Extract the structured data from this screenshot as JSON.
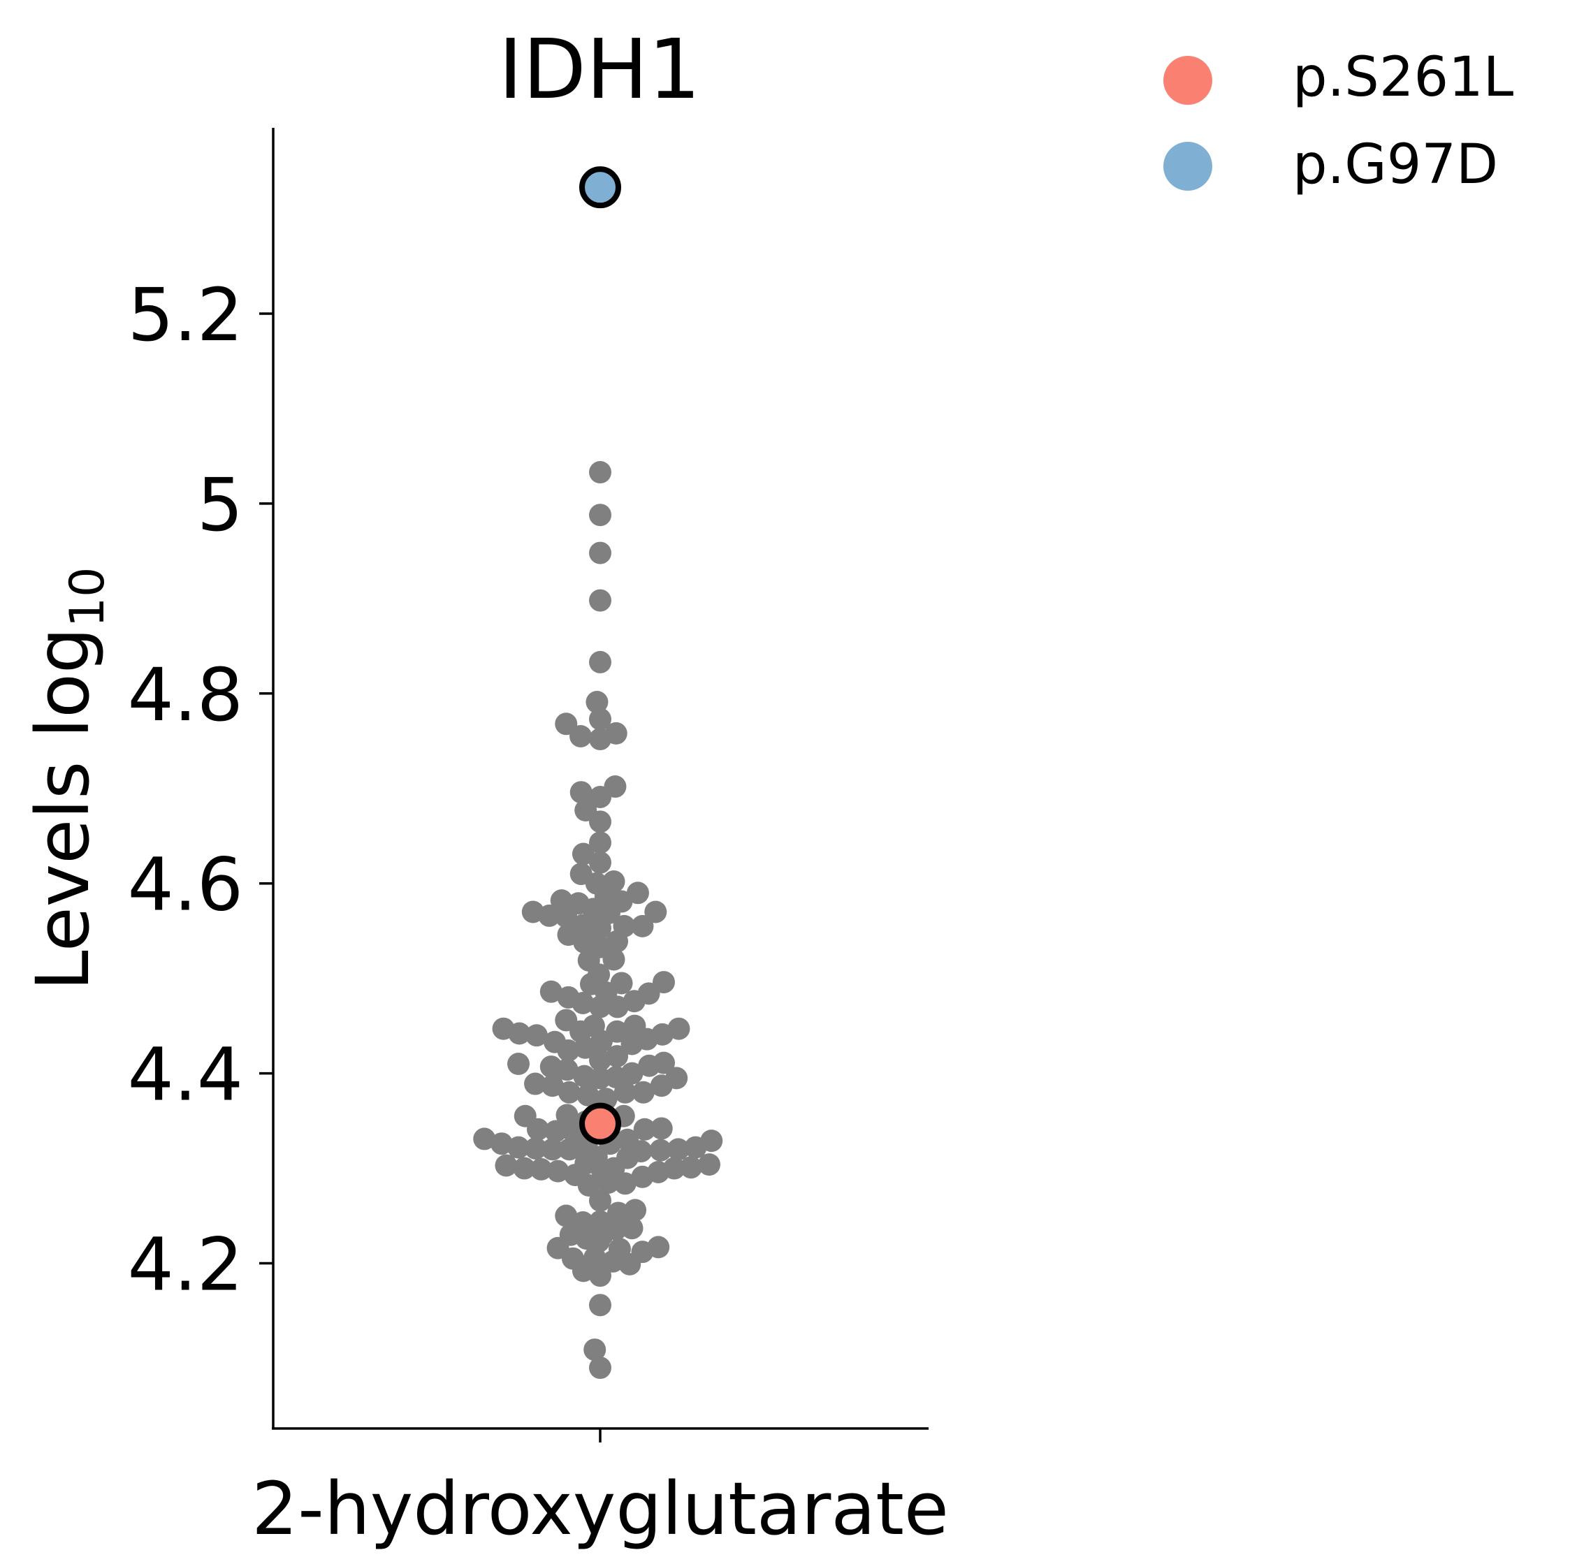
{
  "chart_data": {
    "type": "scatter",
    "title": "IDH1",
    "ylabel": "Levels log",
    "ylabel_sub": "10",
    "categories": [
      "2-hydroxyglutarate"
    ],
    "yticks": [
      4.2,
      4.4,
      4.6,
      4.8,
      5.0,
      5.2
    ],
    "ytick_labels": [
      "4.2",
      "4.4",
      "4.6",
      "4.8",
      "5",
      "5.2"
    ],
    "ylim": [
      4.03,
      5.4
    ],
    "grid": false,
    "legend": {
      "placement": "top-right",
      "entries": [
        {
          "label": "p.S261L",
          "color": "#fa8072"
        },
        {
          "label": "p.G97D",
          "color": "#7fb0d3"
        }
      ]
    },
    "background_color": "#808080",
    "background_points": [
      {
        "x": 0.0,
        "y": 5.033
      },
      {
        "x": 0.0,
        "y": 4.988
      },
      {
        "x": 0.0,
        "y": 4.948
      },
      {
        "x": 0.0,
        "y": 4.898
      },
      {
        "x": 0.0,
        "y": 4.833
      },
      {
        "x": -0.007,
        "y": 4.791
      },
      {
        "x": 0.0,
        "y": 4.773
      },
      {
        "x": -0.075,
        "y": 4.768
      },
      {
        "x": -0.043,
        "y": 4.755
      },
      {
        "x": 0.0,
        "y": 4.752
      },
      {
        "x": 0.035,
        "y": 4.758
      },
      {
        "x": -0.042,
        "y": 4.696
      },
      {
        "x": 0.0,
        "y": 4.691
      },
      {
        "x": 0.033,
        "y": 4.702
      },
      {
        "x": -0.032,
        "y": 4.677
      },
      {
        "x": 0.0,
        "y": 4.665
      },
      {
        "x": 0.0,
        "y": 4.643
      },
      {
        "x": -0.037,
        "y": 4.631
      },
      {
        "x": 0.0,
        "y": 4.622
      },
      {
        "x": -0.042,
        "y": 4.61
      },
      {
        "x": -0.008,
        "y": 4.6
      },
      {
        "x": 0.03,
        "y": 4.602
      },
      {
        "x": 0.012,
        "y": 4.586
      },
      {
        "x": -0.085,
        "y": 4.582
      },
      {
        "x": -0.048,
        "y": 4.579
      },
      {
        "x": 0.047,
        "y": 4.581
      },
      {
        "x": 0.083,
        "y": 4.59
      },
      {
        "x": -0.148,
        "y": 4.57
      },
      {
        "x": -0.112,
        "y": 4.566
      },
      {
        "x": -0.075,
        "y": 4.565
      },
      {
        "x": -0.015,
        "y": 4.573
      },
      {
        "x": 0.02,
        "y": 4.569
      },
      {
        "x": 0.122,
        "y": 4.57
      },
      {
        "x": -0.038,
        "y": 4.556
      },
      {
        "x": 0.0,
        "y": 4.553
      },
      {
        "x": 0.053,
        "y": 4.555
      },
      {
        "x": 0.093,
        "y": 4.555
      },
      {
        "x": -0.07,
        "y": 4.546
      },
      {
        "x": -0.035,
        "y": 4.538
      },
      {
        "x": 0.037,
        "y": 4.539
      },
      {
        "x": 0.0,
        "y": 4.533
      },
      {
        "x": -0.025,
        "y": 4.519
      },
      {
        "x": 0.03,
        "y": 4.52
      },
      {
        "x": -0.003,
        "y": 4.504
      },
      {
        "x": -0.02,
        "y": 4.494
      },
      {
        "x": 0.047,
        "y": 4.495
      },
      {
        "x": 0.14,
        "y": 4.496
      },
      {
        "x": -0.108,
        "y": 4.486
      },
      {
        "x": -0.07,
        "y": 4.48
      },
      {
        "x": 0.013,
        "y": 4.485
      },
      {
        "x": 0.107,
        "y": 4.484
      },
      {
        "x": -0.038,
        "y": 4.474
      },
      {
        "x": 0.0,
        "y": 4.47
      },
      {
        "x": 0.038,
        "y": 4.47
      },
      {
        "x": 0.075,
        "y": 4.476
      },
      {
        "x": -0.075,
        "y": 4.456
      },
      {
        "x": -0.014,
        "y": 4.45
      },
      {
        "x": 0.076,
        "y": 4.45
      },
      {
        "x": -0.213,
        "y": 4.447
      },
      {
        "x": -0.178,
        "y": 4.442
      },
      {
        "x": -0.14,
        "y": 4.44
      },
      {
        "x": -0.043,
        "y": 4.444
      },
      {
        "x": 0.037,
        "y": 4.444
      },
      {
        "x": 0.137,
        "y": 4.441
      },
      {
        "x": 0.173,
        "y": 4.447
      },
      {
        "x": -0.1,
        "y": 4.433
      },
      {
        "x": -0.07,
        "y": 4.424
      },
      {
        "x": 0.003,
        "y": 4.434
      },
      {
        "x": 0.07,
        "y": 4.431
      },
      {
        "x": 0.103,
        "y": 4.436
      },
      {
        "x": -0.033,
        "y": 4.427
      },
      {
        "x": 0.037,
        "y": 4.418
      },
      {
        "x": -0.18,
        "y": 4.41
      },
      {
        "x": -0.108,
        "y": 4.407
      },
      {
        "x": -0.073,
        "y": 4.404
      },
      {
        "x": 0.0,
        "y": 4.414
      },
      {
        "x": 0.07,
        "y": 4.4
      },
      {
        "x": 0.108,
        "y": 4.408
      },
      {
        "x": 0.14,
        "y": 4.411
      },
      {
        "x": -0.035,
        "y": 4.397
      },
      {
        "x": 0.035,
        "y": 4.396
      },
      {
        "x": 0.0,
        "y": 4.395
      },
      {
        "x": 0.168,
        "y": 4.395
      },
      {
        "x": -0.143,
        "y": 4.389
      },
      {
        "x": -0.105,
        "y": 4.387
      },
      {
        "x": 0.135,
        "y": 4.387
      },
      {
        "x": -0.068,
        "y": 4.38
      },
      {
        "x": -0.027,
        "y": 4.377
      },
      {
        "x": 0.013,
        "y": 4.373
      },
      {
        "x": 0.055,
        "y": 4.38
      },
      {
        "x": 0.095,
        "y": 4.38
      },
      {
        "x": -0.165,
        "y": 4.355
      },
      {
        "x": -0.073,
        "y": 4.356
      },
      {
        "x": -0.032,
        "y": 4.349
      },
      {
        "x": 0.052,
        "y": 4.355
      },
      {
        "x": -0.137,
        "y": 4.341
      },
      {
        "x": -0.098,
        "y": 4.339
      },
      {
        "x": -0.062,
        "y": 4.34
      },
      {
        "x": 0.0,
        "y": 4.35
      },
      {
        "x": 0.098,
        "y": 4.341
      },
      {
        "x": 0.135,
        "y": 4.342
      },
      {
        "x": -0.04,
        "y": 4.332
      },
      {
        "x": 0.018,
        "y": 4.339
      },
      {
        "x": 0.06,
        "y": 4.33
      },
      {
        "x": -0.255,
        "y": 4.331
      },
      {
        "x": -0.217,
        "y": 4.326
      },
      {
        "x": -0.18,
        "y": 4.322
      },
      {
        "x": -0.142,
        "y": 4.321
      },
      {
        "x": -0.105,
        "y": 4.32
      },
      {
        "x": -0.068,
        "y": 4.32
      },
      {
        "x": -0.03,
        "y": 4.324
      },
      {
        "x": 0.022,
        "y": 4.326
      },
      {
        "x": 0.09,
        "y": 4.318
      },
      {
        "x": 0.133,
        "y": 4.319
      },
      {
        "x": 0.172,
        "y": 4.32
      },
      {
        "x": 0.21,
        "y": 4.322
      },
      {
        "x": 0.245,
        "y": 4.329
      },
      {
        "x": -0.008,
        "y": 4.312
      },
      {
        "x": 0.06,
        "y": 4.311
      },
      {
        "x": -0.207,
        "y": 4.303
      },
      {
        "x": -0.167,
        "y": 4.3
      },
      {
        "x": -0.13,
        "y": 4.299
      },
      {
        "x": -0.093,
        "y": 4.297
      },
      {
        "x": -0.055,
        "y": 4.293
      },
      {
        "x": -0.032,
        "y": 4.305
      },
      {
        "x": 0.005,
        "y": 4.297
      },
      {
        "x": 0.03,
        "y": 4.3
      },
      {
        "x": 0.093,
        "y": 4.291
      },
      {
        "x": 0.128,
        "y": 4.296
      },
      {
        "x": 0.163,
        "y": 4.3
      },
      {
        "x": 0.2,
        "y": 4.301
      },
      {
        "x": 0.24,
        "y": 4.304
      },
      {
        "x": -0.025,
        "y": 4.282
      },
      {
        "x": 0.018,
        "y": 4.285
      },
      {
        "x": 0.055,
        "y": 4.284
      },
      {
        "x": 0.0,
        "y": 4.266
      },
      {
        "x": -0.075,
        "y": 4.25
      },
      {
        "x": -0.038,
        "y": 4.243
      },
      {
        "x": 0.0,
        "y": 4.244
      },
      {
        "x": 0.04,
        "y": 4.253
      },
      {
        "x": 0.077,
        "y": 4.256
      },
      {
        "x": -0.065,
        "y": 4.23
      },
      {
        "x": -0.03,
        "y": 4.226
      },
      {
        "x": 0.005,
        "y": 4.23
      },
      {
        "x": 0.035,
        "y": 4.236
      },
      {
        "x": 0.07,
        "y": 4.237
      },
      {
        "x": -0.093,
        "y": 4.216
      },
      {
        "x": -0.003,
        "y": 4.223
      },
      {
        "x": 0.043,
        "y": 4.215
      },
      {
        "x": 0.128,
        "y": 4.217
      },
      {
        "x": -0.06,
        "y": 4.205
      },
      {
        "x": -0.012,
        "y": 4.206
      },
      {
        "x": 0.028,
        "y": 4.202
      },
      {
        "x": 0.065,
        "y": 4.199
      },
      {
        "x": 0.093,
        "y": 4.212
      },
      {
        "x": -0.037,
        "y": 4.192
      },
      {
        "x": 0.0,
        "y": 4.187
      },
      {
        "x": 0.0,
        "y": 4.156
      },
      {
        "x": -0.012,
        "y": 4.109
      },
      {
        "x": 0.0,
        "y": 4.09
      }
    ],
    "highlighted_points": [
      {
        "label": "p.S261L",
        "x": 0.0,
        "y": 4.347
      },
      {
        "label": "p.G97D",
        "x": 0.0,
        "y": 5.333
      }
    ]
  }
}
